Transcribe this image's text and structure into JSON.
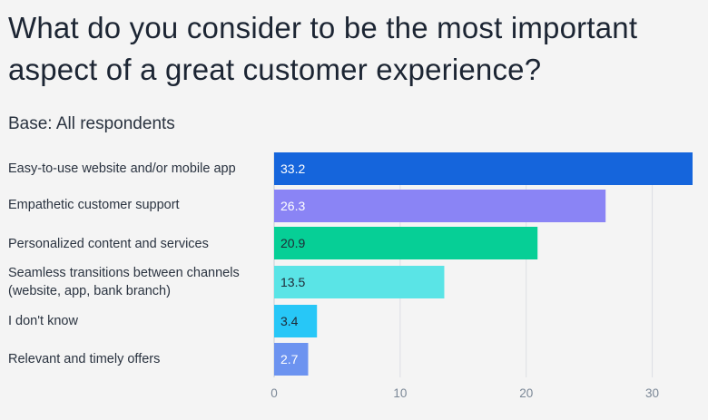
{
  "chart_data": {
    "type": "bar",
    "orientation": "horizontal",
    "title": "What do you consider to be the most important aspect of a great customer experience?",
    "subtitle": "Base: All respondents",
    "categories": [
      "Easy-to-use website and/or mobile app",
      "Empathetic customer support",
      "Personalized content and services",
      "Seamless transitions between channels (website, app, bank branch)",
      "I don't know",
      "Relevant and timely offers"
    ],
    "values": [
      33.2,
      26.3,
      20.9,
      13.5,
      3.4,
      2.7
    ],
    "value_labels": [
      "33.2",
      "26.3",
      "20.9",
      "13.5",
      "3.4",
      "2.7"
    ],
    "bar_colors": [
      "#1565dc",
      "#8a84f5",
      "#06cf96",
      "#5ae4e6",
      "#27c7f7",
      "#6c93f0"
    ],
    "label_colors": [
      "#ffffff",
      "#ffffff",
      "#1f2a37",
      "#1f2a37",
      "#1f2a37",
      "#ffffff"
    ],
    "xlim": [
      0,
      33.2
    ],
    "xticks": [
      0,
      10,
      20,
      30
    ],
    "xtick_labels": [
      "0",
      "10",
      "20",
      "30"
    ],
    "grid": true,
    "legend": "none"
  }
}
